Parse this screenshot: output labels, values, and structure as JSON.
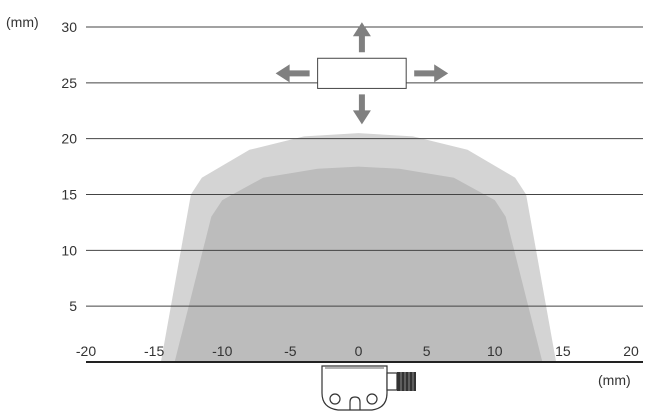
{
  "chart_data": {
    "type": "area",
    "x_unit_label": "(mm)",
    "y_unit_label": "(mm)",
    "x_ticks": [
      -20,
      -15,
      -10,
      -5,
      0,
      5,
      10,
      15,
      20
    ],
    "y_ticks": [
      5,
      10,
      15,
      20,
      25,
      30
    ],
    "xlim": [
      -20,
      20
    ],
    "ylim": [
      0,
      30
    ],
    "grid": "horizontal",
    "series": [
      {
        "role": "outer",
        "color": "#d4d4d4",
        "points": [
          [
            -14.5,
            0
          ],
          [
            -12.3,
            15
          ],
          [
            -11.5,
            16.5
          ],
          [
            -8,
            19
          ],
          [
            -4,
            20.2
          ],
          [
            0,
            20.5
          ],
          [
            4,
            20.2
          ],
          [
            8,
            19
          ],
          [
            11.5,
            16.5
          ],
          [
            12.3,
            15
          ],
          [
            14.5,
            0
          ]
        ]
      },
      {
        "role": "inner",
        "color": "#bcbcbc",
        "points": [
          [
            -13.5,
            0
          ],
          [
            -10.8,
            13
          ],
          [
            -10,
            14.5
          ],
          [
            -7,
            16.5
          ],
          [
            -3,
            17.3
          ],
          [
            0,
            17.5
          ],
          [
            3,
            17.3
          ],
          [
            7,
            16.5
          ],
          [
            10,
            14.5
          ],
          [
            10.8,
            13
          ],
          [
            13.5,
            0
          ]
        ]
      }
    ],
    "target": {
      "x_range": [
        -3,
        3.5
      ],
      "y_range": [
        24.5,
        27.2
      ]
    },
    "arrows": [
      "up",
      "down",
      "left",
      "right"
    ]
  },
  "sensor": {
    "icon": "proximity-sensor-icon"
  }
}
